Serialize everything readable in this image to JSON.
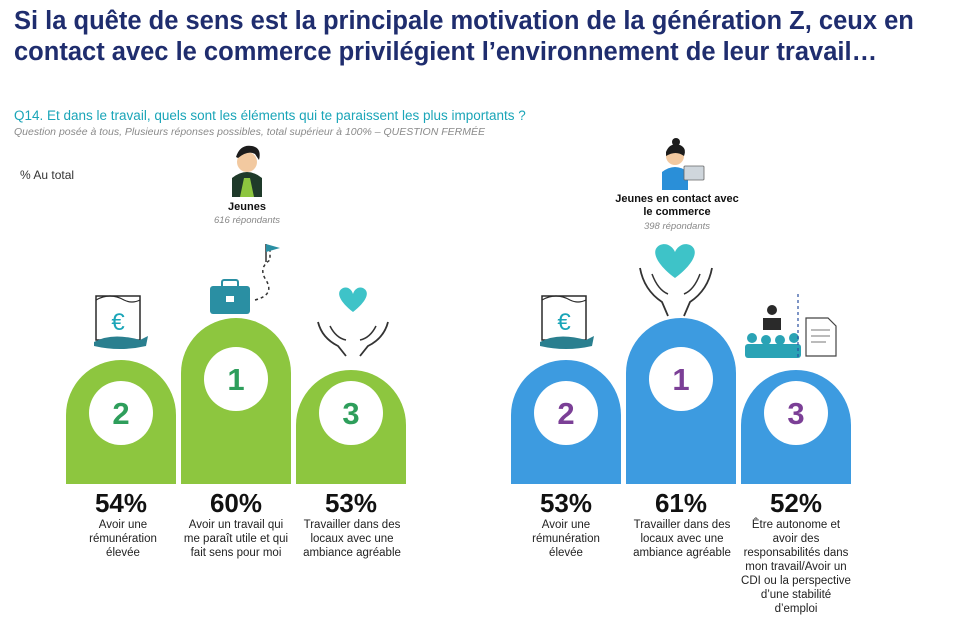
{
  "title": "Si la quête de sens est la principale motivation de la génération Z, ceux en contact avec le commerce privilégient l’environnement de leur travail…",
  "question": "Q14. Et dans le travail, quels sont les éléments qui te paraissent les plus importants ?",
  "note": "Question posée à tous, Plusieurs réponses possibles, total supérieur à 100% – QUESTION FERMÉE",
  "base_label": "% Au total",
  "colors": {
    "jeunes": "#8dc63f",
    "commerce": "#3d9be0",
    "rank_jeunes": "#2e9e5b",
    "rank_commerce": "#7b3f96"
  },
  "chart_data": [
    {
      "type": "bar",
      "group": "Jeunes",
      "respondents": "616 répondants",
      "ranks": [
        "2",
        "1",
        "3"
      ],
      "values_label": [
        "54%",
        "60%",
        "53%"
      ],
      "values": [
        54,
        60,
        53
      ],
      "categories": [
        "Avoir une rémunération élevée",
        "Avoir un travail qui me paraît utile et qui fait sens pour moi",
        "Travailler dans des locaux avec une ambiance agréable"
      ]
    },
    {
      "type": "bar",
      "group": "Jeunes en contact avec le commerce",
      "respondents": "398 répondants",
      "ranks": [
        "2",
        "1",
        "3"
      ],
      "values_label": [
        "53%",
        "61%",
        "52%"
      ],
      "values": [
        53,
        61,
        52
      ],
      "categories": [
        "Avoir une rémunération élevée",
        "Travailler dans des locaux avec une ambiance agréable",
        "Être autonome et avoir des responsabilités dans mon travail/Avoir un CDI ou la perspective d’une stabilité d’emploi"
      ]
    }
  ]
}
